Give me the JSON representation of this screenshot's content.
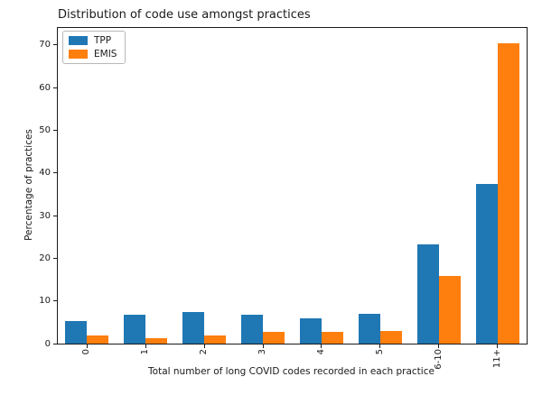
{
  "chart_data": {
    "type": "bar",
    "title": "Distribution of code use amongst practices",
    "xlabel": "Total number of long COVID codes recorded in each practice",
    "ylabel": "Percentage of practices",
    "categories": [
      "0",
      "1",
      "2",
      "3",
      "4",
      "5",
      "6-10",
      "11+"
    ],
    "series": [
      {
        "name": "TPP",
        "color": "#1f77b4",
        "values": [
          5.3,
          6.8,
          7.4,
          6.8,
          6.0,
          7.0,
          23.2,
          37.5
        ]
      },
      {
        "name": "EMIS",
        "color": "#ff7f0e",
        "values": [
          1.9,
          1.3,
          2.0,
          2.8,
          2.8,
          3.0,
          15.9,
          70.5
        ]
      }
    ],
    "yticks": [
      0,
      10,
      20,
      30,
      40,
      50,
      60,
      70
    ],
    "ylim": [
      0,
      74
    ],
    "grid": false,
    "legend_position": "upper left",
    "background_color": "#ffffff",
    "spine_color": "#1a1a1a"
  }
}
